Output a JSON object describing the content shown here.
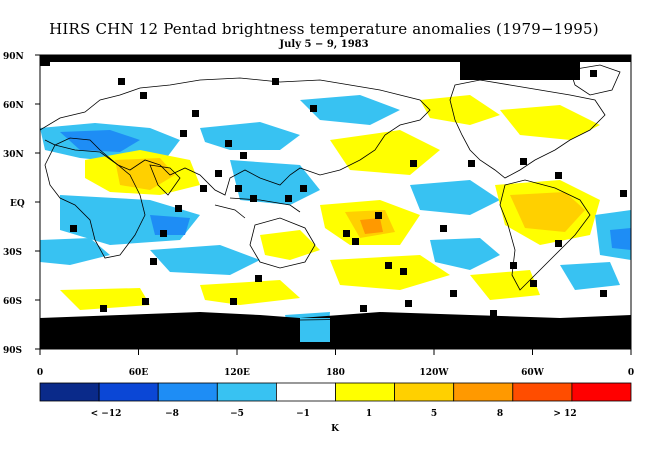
{
  "title": "HIRS CHN 12 Pentad brightness temperature anomalies (1979−1995)",
  "subtitle": "July 5 − 9, 1983",
  "lat_labels": [
    "90N",
    "60N",
    "30N",
    "EQ",
    "30S",
    "60S",
    "90S"
  ],
  "lon_labels": [
    "0",
    "60E",
    "120E",
    "180",
    "120W",
    "60W",
    "0"
  ],
  "colorbar": {
    "colors": [
      "#0a2a8a",
      "#0b47d6",
      "#1e8df5",
      "#38c2f2",
      "#ffffff",
      "#ffff00",
      "#ffd000",
      "#ff9900",
      "#ff4d00",
      "#ff0000"
    ],
    "tick_labels": [
      "< −12",
      "−8",
      "−5",
      "−1",
      "1",
      "5",
      "8",
      "> 12"
    ],
    "unit": "K"
  },
  "colors": {
    "missing": "#000000",
    "land_outline": "#000000"
  }
}
